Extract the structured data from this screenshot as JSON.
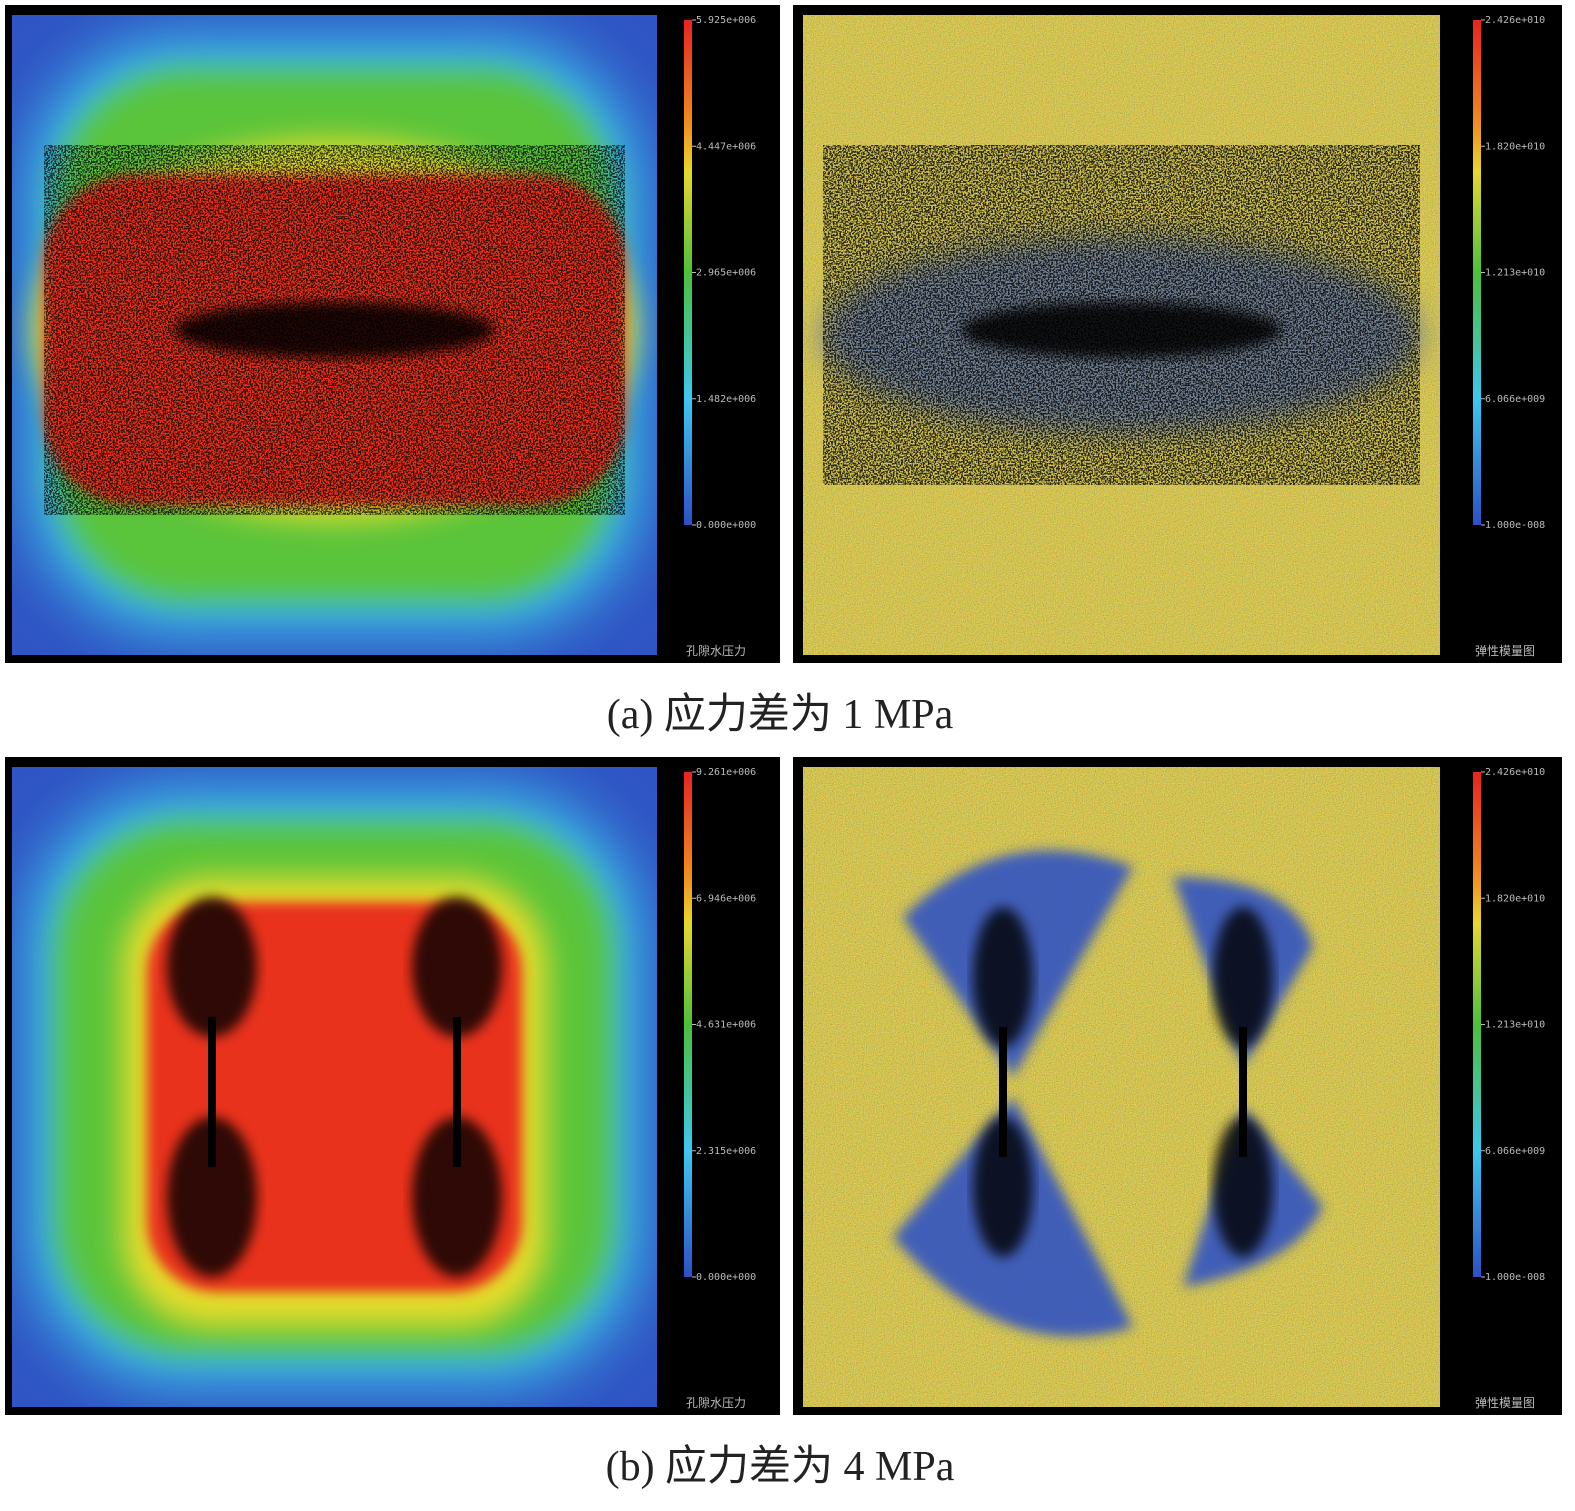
{
  "figure": {
    "panels": [
      {
        "caption": "(a) 应力差为 1 MPa",
        "maps": [
          {
            "title": "孔隙水压力",
            "colorbar_labels": [
              "5.925e+006",
              "4.447e+006",
              "2.965e+006",
              "1.482e+006",
              "0.000e+000"
            ]
          },
          {
            "title": "弹性模量图",
            "colorbar_labels": [
              "2.426e+010",
              "1.820e+010",
              "1.213e+010",
              "6.066e+009",
              "1.000e-008"
            ]
          }
        ]
      },
      {
        "caption": "(b) 应力差为 4 MPa",
        "maps": [
          {
            "title": "孔隙水压力",
            "colorbar_labels": [
              "9.261e+006",
              "6.946e+006",
              "4.631e+006",
              "2.315e+006",
              "0.000e+000"
            ]
          },
          {
            "title": "弹性模量图",
            "colorbar_labels": [
              "2.426e+010",
              "1.820e+010",
              "1.213e+010",
              "6.066e+009",
              "1.000e-008"
            ]
          }
        ]
      }
    ]
  }
}
